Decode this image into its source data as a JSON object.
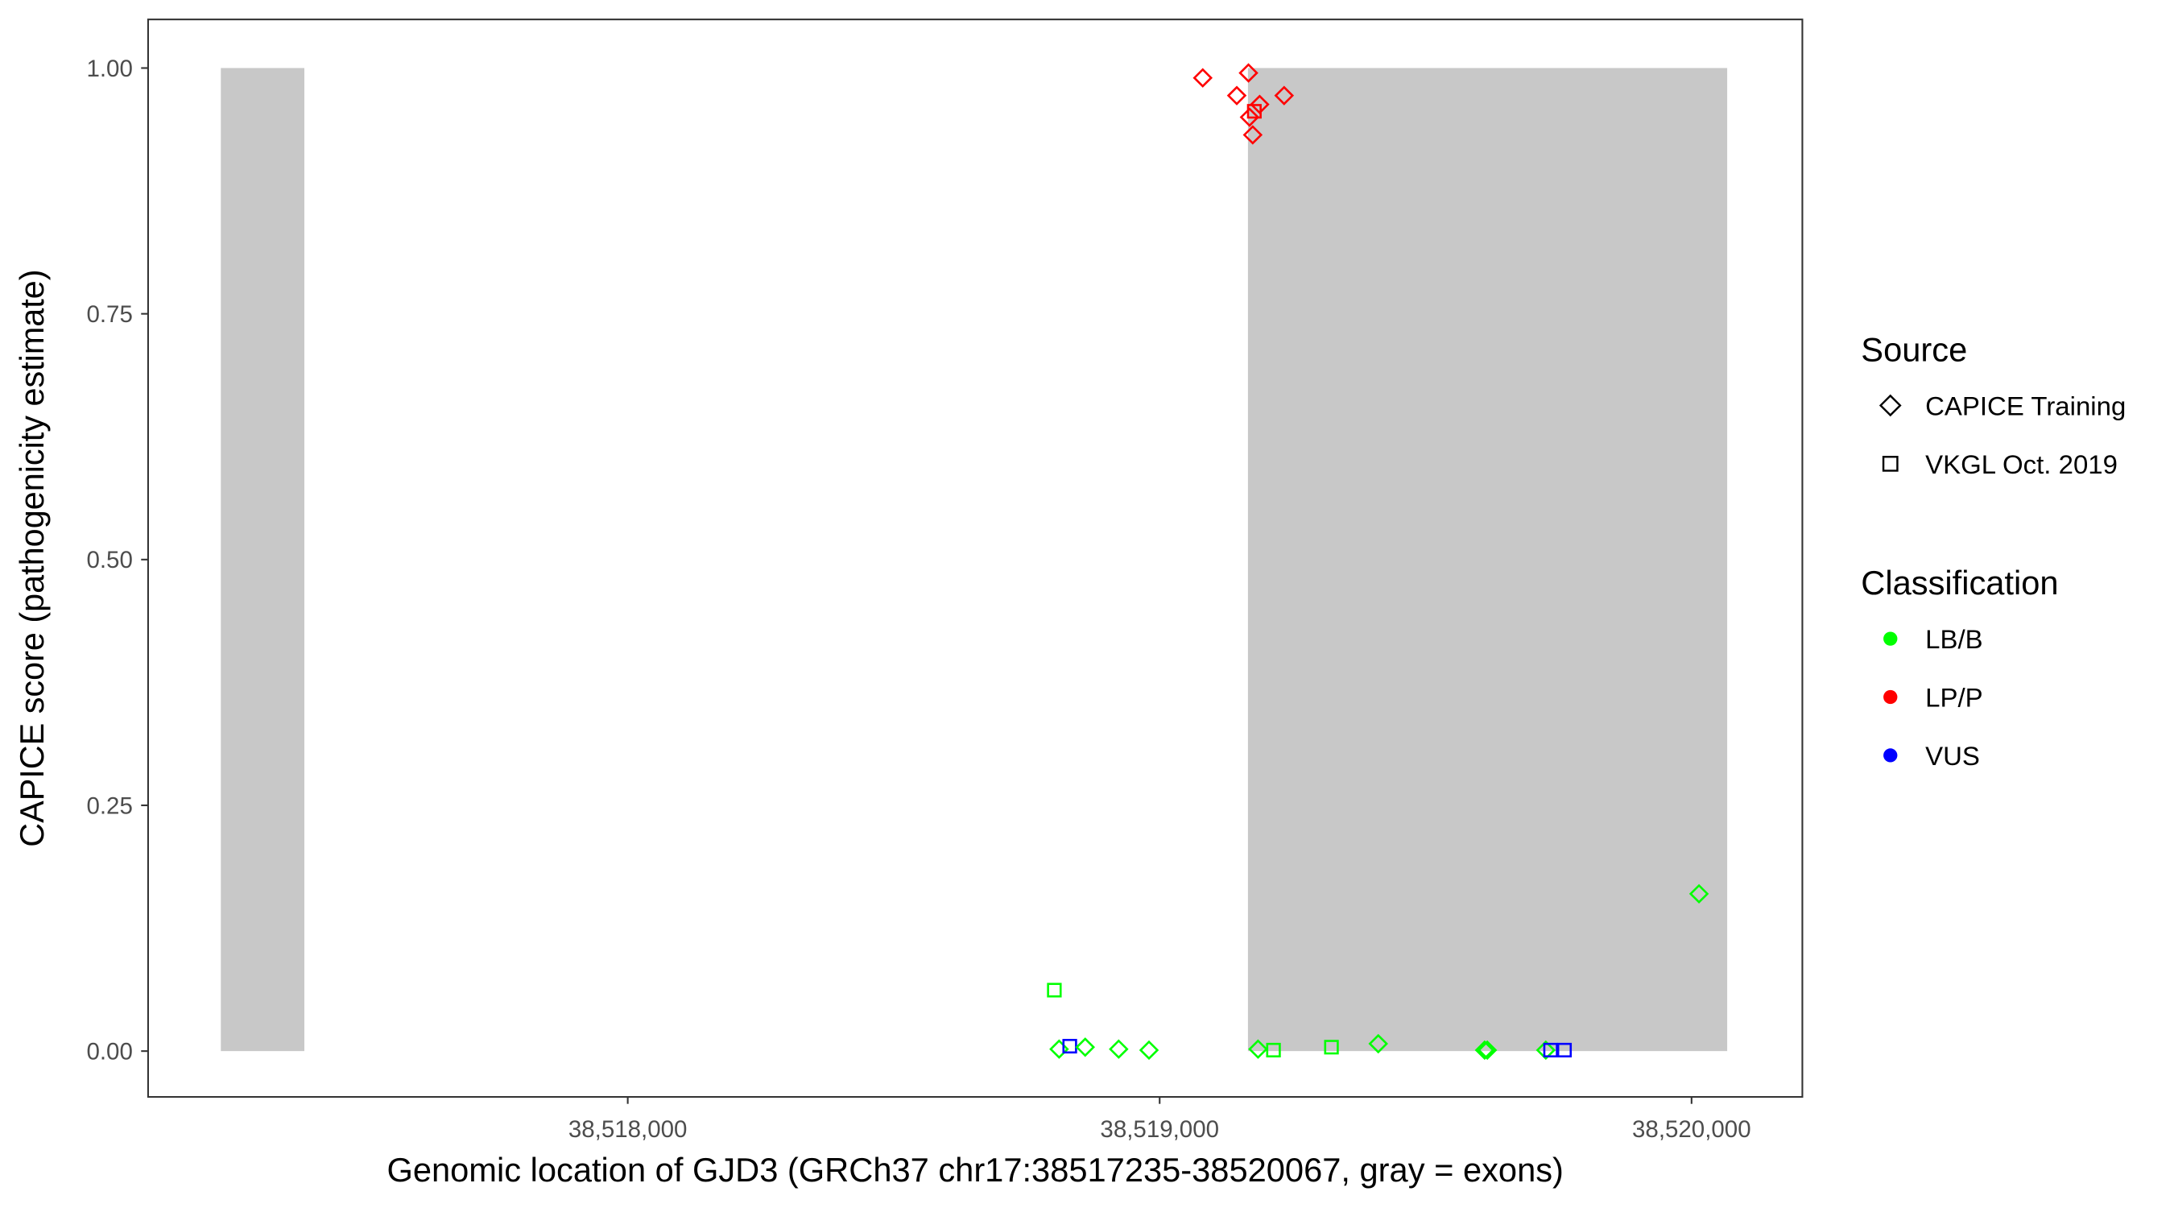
{
  "chart_data": {
    "type": "scatter",
    "xlabel": "Genomic location of GJD3 (GRCh37 chr17:38517235-38520067, gray = exons)",
    "ylabel": "CAPICE score (pathogenicity estimate)",
    "xlim": [
      38516950,
      38520200
    ],
    "ylim": [
      -0.045,
      1.045
    ],
    "x_ticks": [
      38518000,
      38519000,
      38520000
    ],
    "x_tick_labels": [
      "38,518,000",
      "38,519,000",
      "38,520,000"
    ],
    "y_ticks": [
      0,
      0.25,
      0.5,
      0.75,
      1.0
    ],
    "y_tick_labels": [
      "0.00",
      "0.25",
      "0.50",
      "0.75",
      "1.00"
    ],
    "grid": false,
    "exons": [
      [
        38517235,
        38517392
      ],
      [
        38519166,
        38520067
      ]
    ],
    "exon_color": "#c8c8c8",
    "legend": {
      "placement": "right",
      "source": {
        "title": "Source",
        "items": [
          {
            "label": "CAPICE Training",
            "shape": "diamond"
          },
          {
            "label": "VKGL Oct. 2019",
            "shape": "square"
          }
        ]
      },
      "classification": {
        "title": "Classification",
        "items": [
          {
            "label": "LB/B",
            "color": "#00ff00"
          },
          {
            "label": "LP/P",
            "color": "#ff0000"
          },
          {
            "label": "VUS",
            "color": "#0000ff"
          }
        ]
      }
    },
    "points": [
      {
        "x": 38519081,
        "y": 0.99,
        "source": "CAPICE Training",
        "class": "LP/P"
      },
      {
        "x": 38519167,
        "y": 0.995,
        "source": "CAPICE Training",
        "class": "LP/P"
      },
      {
        "x": 38519145,
        "y": 0.972,
        "source": "CAPICE Training",
        "class": "LP/P"
      },
      {
        "x": 38519188,
        "y": 0.963,
        "source": "CAPICE Training",
        "class": "LP/P"
      },
      {
        "x": 38519169,
        "y": 0.95,
        "source": "CAPICE Training",
        "class": "LP/P"
      },
      {
        "x": 38519175,
        "y": 0.932,
        "source": "CAPICE Training",
        "class": "LP/P"
      },
      {
        "x": 38519234,
        "y": 0.972,
        "source": "CAPICE Training",
        "class": "LP/P"
      },
      {
        "x": 38519178,
        "y": 0.956,
        "source": "VKGL Oct. 2019",
        "class": "LP/P"
      },
      {
        "x": 38518802,
        "y": 0.062,
        "source": "VKGL Oct. 2019",
        "class": "LB/B"
      },
      {
        "x": 38518811,
        "y": 0.002,
        "source": "CAPICE Training",
        "class": "LB/B"
      },
      {
        "x": 38518831,
        "y": 0.005,
        "source": "VKGL Oct. 2019",
        "class": "VUS"
      },
      {
        "x": 38518860,
        "y": 0.004,
        "source": "CAPICE Training",
        "class": "LB/B"
      },
      {
        "x": 38518923,
        "y": 0.002,
        "source": "CAPICE Training",
        "class": "LB/B"
      },
      {
        "x": 38518980,
        "y": 0.001,
        "source": "CAPICE Training",
        "class": "LB/B"
      },
      {
        "x": 38519185,
        "y": 0.002,
        "source": "CAPICE Training",
        "class": "LB/B"
      },
      {
        "x": 38519214,
        "y": 0.001,
        "source": "VKGL Oct. 2019",
        "class": "LB/B"
      },
      {
        "x": 38519323,
        "y": 0.004,
        "source": "VKGL Oct. 2019",
        "class": "LB/B"
      },
      {
        "x": 38519411,
        "y": 0.0075,
        "source": "CAPICE Training",
        "class": "LB/B"
      },
      {
        "x": 38519611,
        "y": 0.001,
        "source": "CAPICE Training",
        "class": "LB/B"
      },
      {
        "x": 38519616,
        "y": 0.001,
        "source": "CAPICE Training",
        "class": "LB/B"
      },
      {
        "x": 38519726,
        "y": 0.001,
        "source": "CAPICE Training",
        "class": "LB/B"
      },
      {
        "x": 38519735,
        "y": 0.001,
        "source": "VKGL Oct. 2019",
        "class": "VUS"
      },
      {
        "x": 38519761,
        "y": 0.001,
        "source": "VKGL Oct. 2019",
        "class": "VUS"
      },
      {
        "x": 38520014,
        "y": 0.16,
        "source": "CAPICE Training",
        "class": "LB/B"
      }
    ]
  }
}
